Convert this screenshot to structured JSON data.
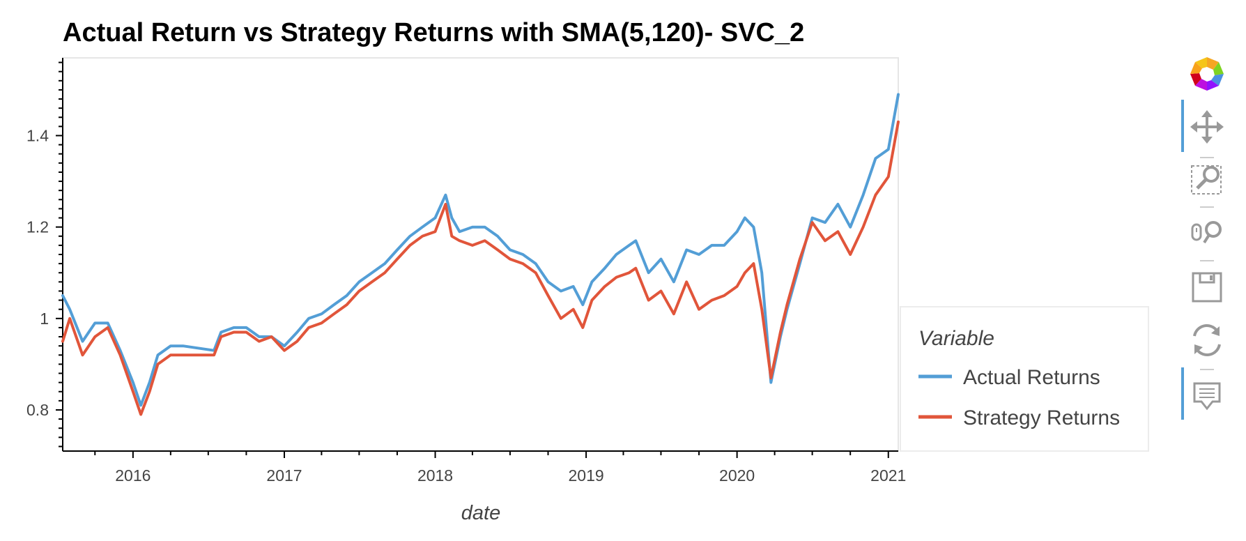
{
  "chart_data": {
    "type": "line",
    "title": "Actual Return vs Strategy Returns with SMA(5,120)- SVC_2",
    "xlabel": "date",
    "ylabel": "",
    "x_ticks": [
      "2016",
      "2017",
      "2018",
      "2019",
      "2020",
      "2021"
    ],
    "y_ticks": [
      "0.8",
      "1",
      "1.2",
      "1.4"
    ],
    "xlim": [
      "2015-07-15",
      "2021-01-25"
    ],
    "ylim": [
      0.71,
      1.57
    ],
    "grid": false,
    "legend": {
      "title": "Variable",
      "placement": "right"
    },
    "x": [
      "2015-07-15",
      "2015-08-01",
      "2015-09-01",
      "2015-10-01",
      "2015-11-01",
      "2015-12-01",
      "2016-01-01",
      "2016-01-20",
      "2016-02-10",
      "2016-03-01",
      "2016-04-01",
      "2016-05-01",
      "2016-07-15",
      "2016-08-01",
      "2016-09-01",
      "2016-10-01",
      "2016-11-01",
      "2016-12-01",
      "2017-01-01",
      "2017-02-01",
      "2017-03-01",
      "2017-04-01",
      "2017-05-01",
      "2017-06-01",
      "2017-07-01",
      "2017-08-01",
      "2017-09-01",
      "2017-10-01",
      "2017-11-01",
      "2017-12-01",
      "2018-01-01",
      "2018-01-26",
      "2018-02-10",
      "2018-03-01",
      "2018-04-01",
      "2018-05-01",
      "2018-06-01",
      "2018-07-01",
      "2018-08-01",
      "2018-09-01",
      "2018-10-01",
      "2018-11-01",
      "2018-12-01",
      "2018-12-24",
      "2019-01-15",
      "2019-02-15",
      "2019-03-15",
      "2019-04-15",
      "2019-05-01",
      "2019-06-01",
      "2019-07-01",
      "2019-08-01",
      "2019-09-01",
      "2019-10-01",
      "2019-11-01",
      "2019-12-01",
      "2020-01-01",
      "2020-01-20",
      "2020-02-10",
      "2020-03-01",
      "2020-03-23",
      "2020-04-15",
      "2020-05-01",
      "2020-06-01",
      "2020-07-01",
      "2020-08-01",
      "2020-09-01",
      "2020-10-01",
      "2020-11-01",
      "2020-12-01",
      "2021-01-01",
      "2021-01-25"
    ],
    "series": [
      {
        "name": "Actual Returns",
        "color": "#539ed6",
        "values": [
          1.05,
          1.02,
          0.95,
          0.99,
          0.99,
          0.93,
          0.86,
          0.81,
          0.86,
          0.92,
          0.94,
          0.94,
          0.93,
          0.97,
          0.98,
          0.98,
          0.96,
          0.96,
          0.94,
          0.97,
          1.0,
          1.01,
          1.03,
          1.05,
          1.08,
          1.1,
          1.12,
          1.15,
          1.18,
          1.2,
          1.22,
          1.27,
          1.22,
          1.19,
          1.2,
          1.2,
          1.18,
          1.15,
          1.14,
          1.12,
          1.08,
          1.06,
          1.07,
          1.03,
          1.08,
          1.11,
          1.14,
          1.16,
          1.17,
          1.1,
          1.13,
          1.08,
          1.15,
          1.14,
          1.16,
          1.16,
          1.19,
          1.22,
          1.2,
          1.1,
          0.86,
          0.96,
          1.02,
          1.12,
          1.22,
          1.21,
          1.25,
          1.2,
          1.27,
          1.35,
          1.37,
          1.49
        ]
      },
      {
        "name": "Strategy Returns",
        "color": "#e1553a",
        "values": [
          0.95,
          1.0,
          0.92,
          0.96,
          0.98,
          0.92,
          0.84,
          0.79,
          0.84,
          0.9,
          0.92,
          0.92,
          0.92,
          0.96,
          0.97,
          0.97,
          0.95,
          0.96,
          0.93,
          0.95,
          0.98,
          0.99,
          1.01,
          1.03,
          1.06,
          1.08,
          1.1,
          1.13,
          1.16,
          1.18,
          1.19,
          1.25,
          1.18,
          1.17,
          1.16,
          1.17,
          1.15,
          1.13,
          1.12,
          1.1,
          1.05,
          1.0,
          1.02,
          0.98,
          1.04,
          1.07,
          1.09,
          1.1,
          1.11,
          1.04,
          1.06,
          1.01,
          1.08,
          1.02,
          1.04,
          1.05,
          1.07,
          1.1,
          1.12,
          1.02,
          0.87,
          0.97,
          1.03,
          1.13,
          1.21,
          1.17,
          1.19,
          1.14,
          1.2,
          1.27,
          1.31,
          1.43
        ]
      }
    ]
  },
  "toolbar": {
    "tools": [
      "bokeh-logo-icon",
      "pan-icon",
      "box-zoom-icon",
      "wheel-zoom-icon",
      "save-icon",
      "reset-icon",
      "hover-icon"
    ]
  }
}
